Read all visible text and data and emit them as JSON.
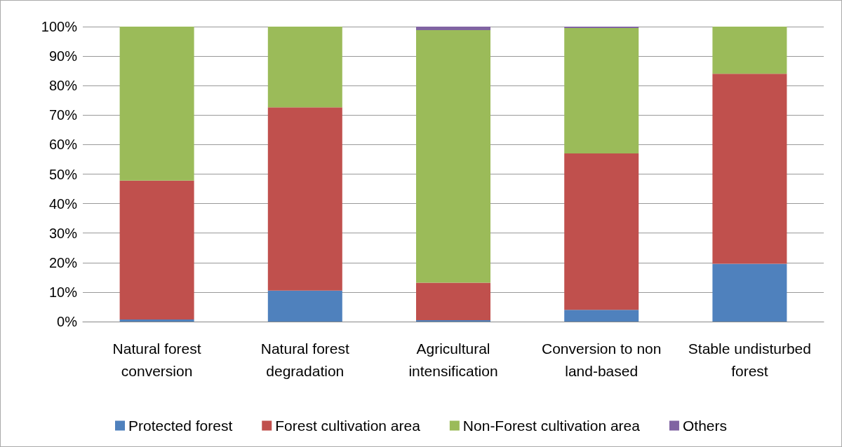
{
  "chart_data": {
    "type": "bar",
    "stacked": true,
    "categories": [
      "Natural forest conversion",
      "Natural forest degradation",
      "Agricultural intensification",
      "Conversion to non land-based",
      "Stable undisturbed forest"
    ],
    "series": [
      {
        "name": "Protected forest",
        "color": "#4f81bd",
        "values": [
          0.7,
          10.5,
          0.5,
          4,
          19.6
        ]
      },
      {
        "name": "Forest cultivation area",
        "color": "#c0504d",
        "values": [
          47.1,
          62.1,
          12.7,
          53,
          64.4
        ]
      },
      {
        "name": "Non-Forest cultivation area",
        "color": "#9bbb59",
        "values": [
          52.2,
          27.4,
          85.6,
          42.5,
          16
        ]
      },
      {
        "name": "Others",
        "color": "#8064a2",
        "values": [
          0,
          0,
          1.2,
          0.5,
          0
        ]
      }
    ],
    "ylim": [
      0,
      100
    ],
    "yticks": [
      {
        "value": 0,
        "label": "0%"
      },
      {
        "value": 10,
        "label": "10%"
      },
      {
        "value": 20,
        "label": "20%"
      },
      {
        "value": 30,
        "label": "30%"
      },
      {
        "value": 40,
        "label": "40%"
      },
      {
        "value": 50,
        "label": "50%"
      },
      {
        "value": 60,
        "label": "60%"
      },
      {
        "value": 70,
        "label": "70%"
      },
      {
        "value": 80,
        "label": "80%"
      },
      {
        "value": 90,
        "label": "90%"
      },
      {
        "value": 100,
        "label": "100%"
      }
    ],
    "grid": "y",
    "legend": "bottom"
  }
}
